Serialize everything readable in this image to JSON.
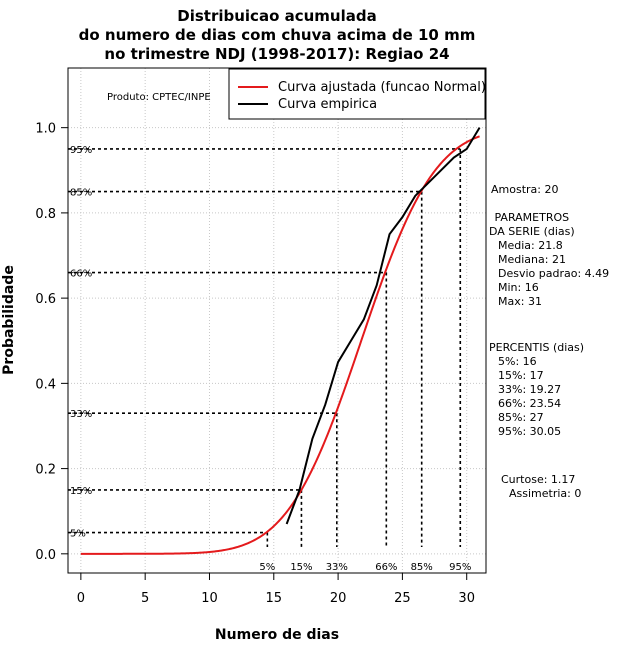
{
  "chart_data": {
    "type": "line",
    "title": [
      "Distribuicao acumulada",
      "do numero de dias com chuva acima de 10 mm",
      "no trimestre NDJ (1998-2017): Regiao 24"
    ],
    "xlabel": "Numero de dias",
    "ylabel": "Probabilidade",
    "xlim": [
      -1,
      31.5
    ],
    "ylim": [
      -0.045,
      1.14
    ],
    "x_ticks": [
      0,
      5,
      10,
      15,
      20,
      25,
      30
    ],
    "y_ticks": [
      0.0,
      0.2,
      0.4,
      0.6,
      0.8,
      1.0
    ],
    "y_tick_labels": [
      "0.0",
      "0.2",
      "0.4",
      "0.6",
      "0.8",
      "1.0"
    ],
    "grid": true,
    "credit": "Produto: CPTEC/INPE",
    "legend": {
      "position": "top-right",
      "entries": [
        {
          "label": "Curva ajustada (funcao Normal)",
          "color": "#e41a1c"
        },
        {
          "label": "Curva empirica",
          "color": "#000000"
        }
      ]
    },
    "series": [
      {
        "name": "Curva ajustada (funcao Normal)",
        "color": "#e41a1c",
        "kind": "normal_cdf",
        "mean": 21.8,
        "sd": 4.49,
        "x_range": [
          0,
          31
        ]
      },
      {
        "name": "Curva empirica",
        "color": "#000000",
        "x": [
          16,
          17,
          18,
          19,
          20,
          21,
          22,
          23,
          24,
          25,
          26,
          27,
          28,
          29,
          30,
          31
        ],
        "y": [
          0.07,
          0.15,
          0.27,
          0.35,
          0.45,
          0.5,
          0.55,
          0.63,
          0.75,
          0.79,
          0.84,
          0.87,
          0.9,
          0.93,
          0.95,
          1.0
        ]
      }
    ],
    "percentiles": [
      {
        "label": "5%",
        "prob": 0.05,
        "value": 14.5
      },
      {
        "label": "15%",
        "prob": 0.15,
        "value": 17.15
      },
      {
        "label": "33%",
        "prob": 0.33,
        "value": 19.9
      },
      {
        "label": "66%",
        "prob": 0.66,
        "value": 23.75
      },
      {
        "label": "85%",
        "prob": 0.85,
        "value": 26.5
      },
      {
        "label": "95%",
        "prob": 0.95,
        "value": 29.5
      }
    ],
    "side_panel": {
      "amostra": "Amostra: 20",
      "param_title": [
        " PARAMETROS",
        "DA SERIE (dias)"
      ],
      "params": [
        "Media: 21.8",
        "Mediana: 21",
        "Desvio padrao: 4.49",
        "Min: 16",
        "Max: 31"
      ],
      "percentis_title": "PERCENTIS (dias)",
      "percentis": [
        "5%: 16",
        "15%: 17",
        "33%: 19.27",
        "66%: 23.54",
        "85%: 27",
        "95%: 30.05"
      ],
      "curtose": "Curtose: 1.17",
      "assimetria": "Assimetria: 0"
    }
  }
}
